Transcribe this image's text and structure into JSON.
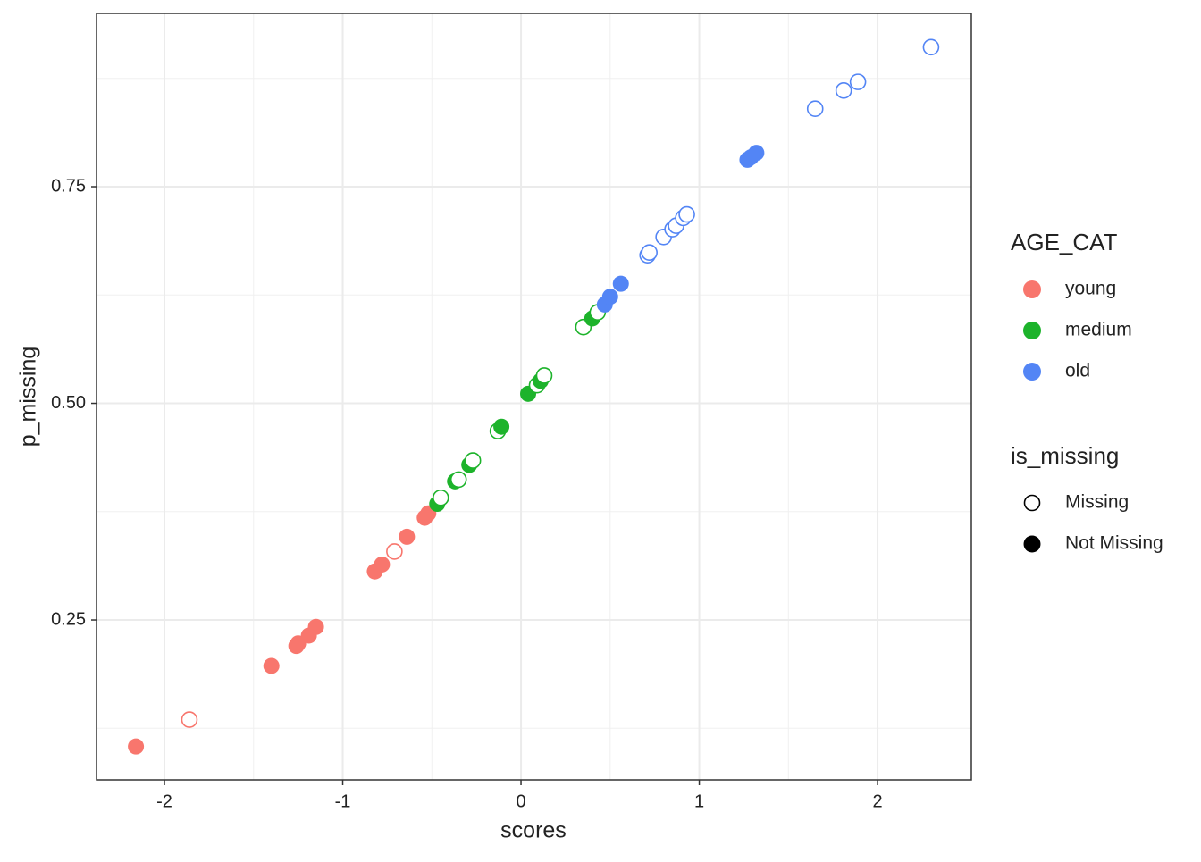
{
  "chart_data": {
    "type": "scatter",
    "x_label": "scores",
    "y_label": "p_missing",
    "xlim": [
      -2.381,
      2.526
    ],
    "ylim": [
      0.0655,
      0.95
    ],
    "xticks": [
      -2,
      -1,
      0,
      1,
      2
    ],
    "yticks": [
      0.25,
      {
        "value": 0.5,
        "label": "0.50"
      },
      0.75
    ],
    "x_minor_ticks": [
      -1.5,
      -0.5,
      0.5,
      1.5
    ],
    "y_minor_ticks": [
      0.125,
      0.375,
      0.625,
      0.875
    ],
    "grid": true,
    "legend_title": "AGE_CAT",
    "shape_legend": {
      "title": "is_missing",
      "labels": [
        "Missing",
        "Not Missing"
      ]
    },
    "series": [
      {
        "name": "young",
        "color": "#f8766d",
        "x": [
          -2.16,
          -1.86,
          -1.4,
          -1.26,
          -1.25,
          -1.19,
          -1.15,
          -0.82,
          -0.78,
          -0.71,
          -0.64,
          -0.54,
          -0.52
        ],
        "values": [
          0.104,
          0.135,
          0.197,
          0.22,
          0.223,
          0.232,
          0.242,
          0.306,
          0.314,
          0.329,
          0.346,
          0.368,
          0.373
        ],
        "missing": [
          false,
          true,
          false,
          false,
          false,
          false,
          false,
          false,
          false,
          true,
          false,
          false,
          false
        ]
      },
      {
        "name": "medium",
        "color": "#1db32b",
        "x": [
          -0.47,
          -0.45,
          -0.37,
          -0.35,
          -0.29,
          -0.27,
          -0.13,
          -0.11,
          0.04,
          0.09,
          0.11,
          0.13,
          0.35,
          0.4,
          0.43
        ],
        "values": [
          0.384,
          0.391,
          0.41,
          0.412,
          0.429,
          0.434,
          0.468,
          0.473,
          0.511,
          0.521,
          0.526,
          0.532,
          0.588,
          0.598,
          0.605
        ],
        "missing": [
          false,
          true,
          false,
          true,
          false,
          true,
          true,
          false,
          false,
          true,
          false,
          true,
          true,
          false,
          true
        ]
      },
      {
        "name": "old",
        "color": "#5385f5",
        "x": [
          0.47,
          0.5,
          0.56,
          0.71,
          0.72,
          0.8,
          0.85,
          0.87,
          0.91,
          0.93,
          1.27,
          1.29,
          1.32,
          1.65,
          1.81,
          1.89,
          2.3
        ],
        "values": [
          0.614,
          0.623,
          0.638,
          0.671,
          0.674,
          0.692,
          0.701,
          0.705,
          0.714,
          0.718,
          0.781,
          0.784,
          0.789,
          0.84,
          0.861,
          0.871,
          0.911
        ],
        "missing": [
          false,
          false,
          false,
          true,
          true,
          true,
          true,
          true,
          true,
          true,
          false,
          false,
          false,
          true,
          true,
          true,
          true
        ]
      }
    ]
  }
}
